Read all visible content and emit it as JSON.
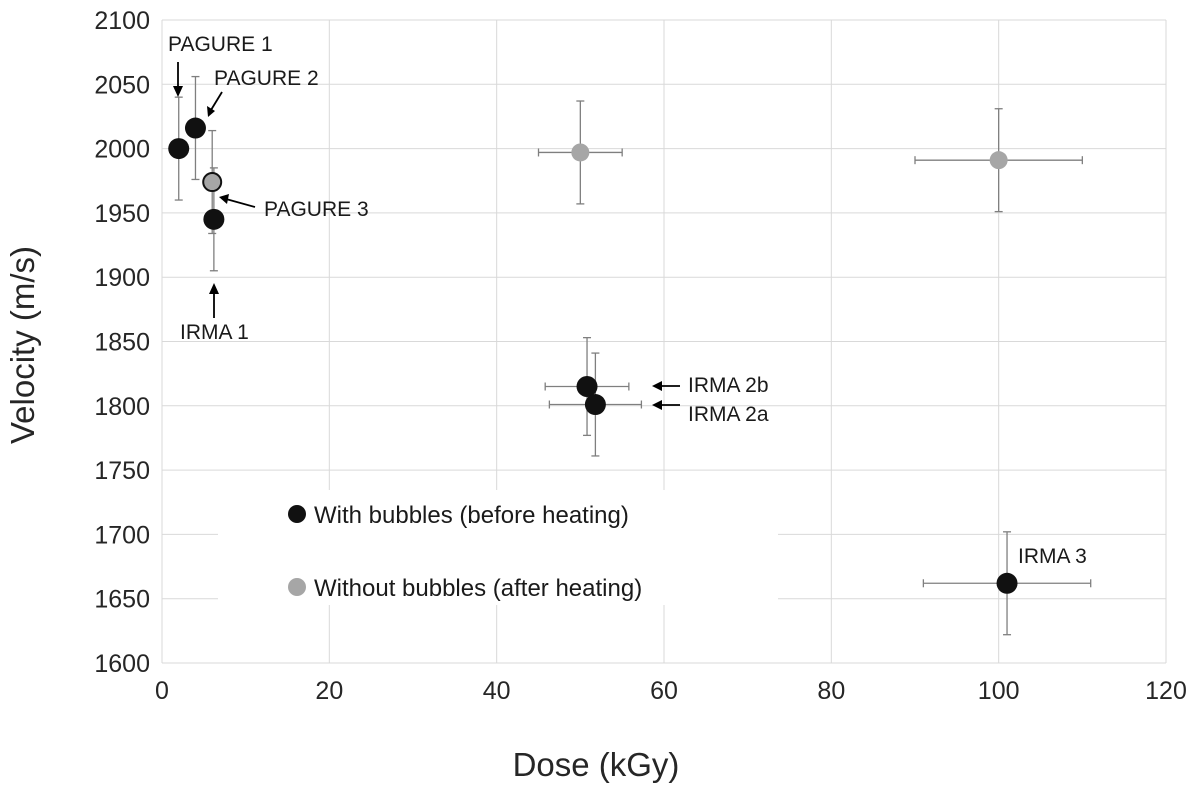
{
  "chart_data": {
    "type": "scatter",
    "title": "",
    "xlabel": "Dose (kGy)",
    "ylabel": "Velocity (m/s)",
    "xlim": [
      0,
      120
    ],
    "ylim": [
      1600,
      2100
    ],
    "xticks": [
      0,
      20,
      40,
      60,
      80,
      100,
      120
    ],
    "yticks": [
      1600,
      1650,
      1700,
      1750,
      1800,
      1850,
      1900,
      1950,
      2000,
      2050,
      2100
    ],
    "grid": true,
    "legend_placement": "lower-left",
    "series": [
      {
        "name": "With bubbles (before heating)",
        "color": "#111111",
        "points": [
          {
            "x": 2,
            "y": 2000,
            "xerr": 0,
            "yerr": 40,
            "label": "PAGURE 1"
          },
          {
            "x": 4,
            "y": 2016,
            "xerr": 0,
            "yerr": 40,
            "label": "PAGURE 2"
          },
          {
            "x": 6.2,
            "y": 1945,
            "xerr": 0,
            "yerr": 40,
            "label": "IRMA 1"
          },
          {
            "x": 50.8,
            "y": 1815,
            "xerr": 5,
            "yerr": 38,
            "label": "IRMA 2b"
          },
          {
            "x": 51.8,
            "y": 1801,
            "xerr": 5.5,
            "yerr": 40,
            "label": "IRMA 2a"
          },
          {
            "x": 101,
            "y": 1662,
            "xerr": 10,
            "yerr": 40,
            "label": "IRMA 3"
          }
        ]
      },
      {
        "name": "Without bubbles (after heating)",
        "color": "#a6a6a6",
        "points": [
          {
            "x": 6,
            "y": 1974,
            "xerr": 0,
            "yerr": 40,
            "label": "PAGURE 3"
          },
          {
            "x": 50,
            "y": 1997,
            "xerr": 5,
            "yerr": 40,
            "label": ""
          },
          {
            "x": 100,
            "y": 1991,
            "xerr": 10,
            "yerr": 40,
            "label": ""
          }
        ]
      }
    ],
    "annotations": [
      "PAGURE 1",
      "PAGURE 2",
      "PAGURE 3",
      "IRMA 1",
      "IRMA 2b",
      "IRMA 2a",
      "IRMA 3"
    ]
  }
}
